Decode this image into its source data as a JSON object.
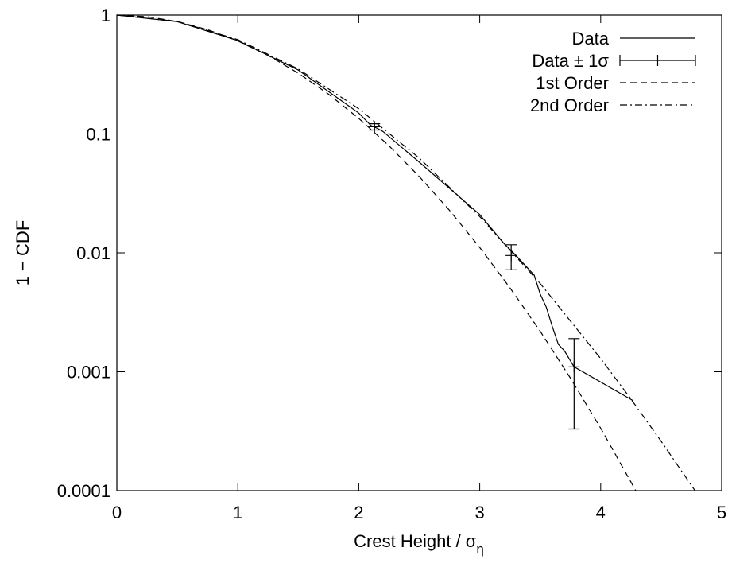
{
  "chart_data": {
    "type": "line",
    "xlabel": "Crest Height / σ",
    "xlabel_subscript": "η",
    "ylabel": "1 − CDF",
    "xlim": [
      0,
      5
    ],
    "xticks": [
      0,
      1,
      2,
      3,
      4,
      5
    ],
    "ylim": [
      0.0001,
      1
    ],
    "yticks": [
      1,
      0.1,
      0.01,
      0.001,
      0.0001
    ],
    "ylog": true,
    "legend": "top-right",
    "series": [
      {
        "name": "Data",
        "color": "#000000",
        "style": "solid",
        "x": [
          0,
          0.5,
          1,
          1.5,
          2,
          2.1,
          2.15,
          2.2,
          2.5,
          3,
          3.2,
          3.3,
          3.45,
          3.5,
          3.55,
          3.6,
          3.65,
          3.7,
          3.78,
          4.27
        ],
        "values": [
          1,
          0.88,
          0.61,
          0.345,
          0.15,
          0.118,
          0.112,
          0.105,
          0.058,
          0.021,
          0.012,
          0.0095,
          0.0065,
          0.0045,
          0.0035,
          0.0024,
          0.0017,
          0.0015,
          0.0011,
          0.00057
        ]
      },
      {
        "name": "Data ± 1σ",
        "color": "#000000",
        "style": "errorbars",
        "x": [
          2.13,
          3.26,
          3.78
        ],
        "values": [
          0.115,
          0.0095,
          0.0011
        ],
        "lower": [
          0.108,
          0.0072,
          0.00033
        ],
        "upper": [
          0.122,
          0.0117,
          0.0019
        ]
      },
      {
        "name": "1st Order",
        "color": "#000000",
        "style": "dashed",
        "x": [
          0,
          0.25,
          0.5,
          0.75,
          1,
          1.25,
          1.5,
          1.75,
          2,
          2.25,
          2.5,
          2.75,
          3,
          3.25,
          3.5,
          3.75,
          4,
          4.29
        ],
        "values": [
          1,
          0.9692,
          0.8825,
          0.7548,
          0.6065,
          0.4578,
          0.3247,
          0.2163,
          0.1353,
          0.0796,
          0.0439,
          0.0228,
          0.0111,
          0.00508,
          0.00219,
          0.000884,
          0.000335,
          0.0001
        ]
      },
      {
        "name": "2nd Order",
        "color": "#000000",
        "style": "dashdot",
        "x": [
          0,
          0.5,
          1,
          1.5,
          2,
          2.5,
          3,
          3.5,
          4,
          4.25,
          4.5,
          4.78
        ],
        "values": [
          1,
          0.885,
          0.622,
          0.352,
          0.163,
          0.0627,
          0.0202,
          0.00552,
          0.00129,
          0.00059,
          0.00026,
          0.0001
        ]
      }
    ]
  }
}
